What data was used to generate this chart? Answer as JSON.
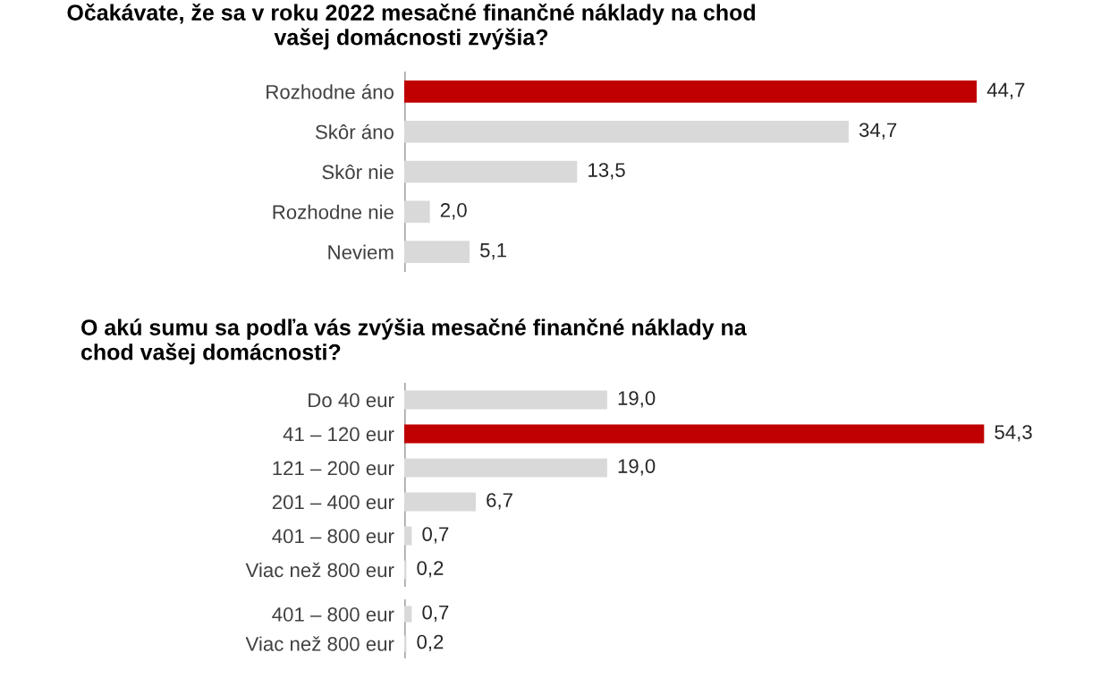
{
  "chart_data": [
    {
      "type": "bar",
      "orientation": "horizontal",
      "title": "Očakávate, že sa v roku 2022 mesačné finančné náklady na chod\nvašej domácnosti zvýšia?",
      "categories": [
        "Rozhodne áno",
        "Skôr áno",
        "Skôr nie",
        "Rozhodne nie",
        "Neviem"
      ],
      "values": [
        44.7,
        34.7,
        13.5,
        2.0,
        5.1
      ],
      "value_labels": [
        "44,7",
        "34,7",
        "13,5",
        "2,0",
        "5,1"
      ],
      "colors": [
        "#c00000",
        "#d9d9d9",
        "#d9d9d9",
        "#d9d9d9",
        "#d9d9d9"
      ]
    },
    {
      "type": "bar",
      "orientation": "horizontal",
      "title": "O akú sumu sa podľa vás zvýšia mesačné finančné náklady na\nchod vašej domácnosti?",
      "categories": [
        "Do 40 eur",
        "41 – 120 eur",
        "121 – 200 eur",
        "201 – 400 eur",
        "401 – 800 eur",
        "Viac než 800 eur"
      ],
      "values": [
        19.0,
        54.3,
        19.0,
        6.7,
        0.7,
        0.2
      ],
      "value_labels": [
        "19,0",
        "54,3",
        "19,0",
        "6,7",
        "0,7",
        "0,2"
      ],
      "colors": [
        "#d9d9d9",
        "#c00000",
        "#d9d9d9",
        "#d9d9d9",
        "#d9d9d9",
        "#d9d9d9"
      ]
    },
    {
      "type": "bar",
      "orientation": "horizontal",
      "categories": [
        "401 – 800 eur",
        "Viac než 800 eur"
      ],
      "values": [
        0.7,
        0.2
      ],
      "value_labels": [
        "0,7",
        "0,2"
      ],
      "colors": [
        "#d9d9d9",
        "#d9d9d9"
      ]
    }
  ]
}
